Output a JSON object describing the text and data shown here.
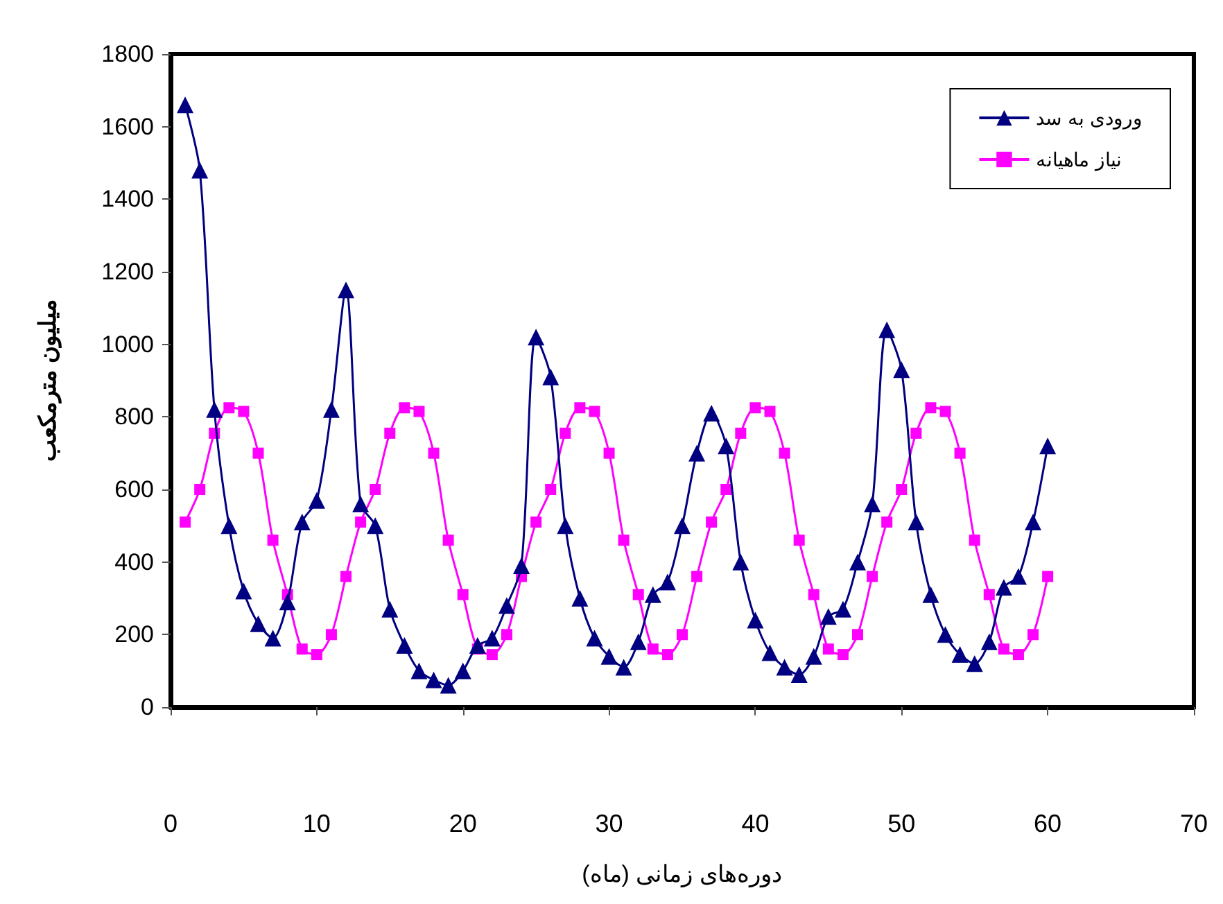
{
  "chart_data": {
    "type": "line",
    "xlabel": "دوره‌های زمانی (ماه)",
    "ylabel": "میلیون مترمکعب",
    "xlim": [
      0,
      70
    ],
    "xticks": [
      0,
      10,
      20,
      30,
      40,
      50,
      60,
      70
    ],
    "ylim": [
      0,
      1800
    ],
    "yticks": [
      0,
      200,
      400,
      600,
      800,
      1000,
      1200,
      1400,
      1600,
      1800
    ],
    "x": [
      1,
      2,
      3,
      4,
      5,
      6,
      7,
      8,
      9,
      10,
      11,
      12,
      13,
      14,
      15,
      16,
      17,
      18,
      19,
      20,
      21,
      22,
      23,
      24,
      25,
      26,
      27,
      28,
      29,
      30,
      31,
      32,
      33,
      34,
      35,
      36,
      37,
      38,
      39,
      40,
      41,
      42,
      43,
      44,
      45,
      46,
      47,
      48,
      49,
      50,
      51,
      52,
      53,
      54,
      55,
      56,
      57,
      58,
      59,
      60
    ],
    "grid": false,
    "legend": "top right",
    "series": [
      {
        "name": "ورودی به سد",
        "color": "#000080",
        "marker": "triangle",
        "values": [
          1660,
          1480,
          820,
          500,
          320,
          230,
          190,
          290,
          510,
          570,
          820,
          1150,
          560,
          500,
          270,
          170,
          100,
          75,
          60,
          100,
          170,
          190,
          280,
          390,
          1020,
          910,
          500,
          300,
          190,
          140,
          110,
          180,
          310,
          345,
          500,
          700,
          810,
          720,
          400,
          240,
          150,
          110,
          90,
          140,
          250,
          270,
          400,
          560,
          1040,
          930,
          510,
          310,
          200,
          145,
          120,
          180,
          330,
          360,
          510,
          720
        ]
      },
      {
        "name": "نیاز ماهیانه",
        "color": "#ff00ff",
        "marker": "square",
        "values": [
          510,
          600,
          755,
          825,
          815,
          700,
          460,
          310,
          160,
          145,
          200,
          360,
          510,
          600,
          755,
          825,
          815,
          700,
          460,
          310,
          160,
          145,
          200,
          360,
          510,
          600,
          755,
          825,
          815,
          700,
          460,
          310,
          160,
          145,
          200,
          360,
          510,
          600,
          755,
          825,
          815,
          700,
          460,
          310,
          160,
          145,
          200,
          360,
          510,
          600,
          755,
          825,
          815,
          700,
          460,
          310,
          160,
          145,
          200,
          360
        ]
      }
    ]
  }
}
